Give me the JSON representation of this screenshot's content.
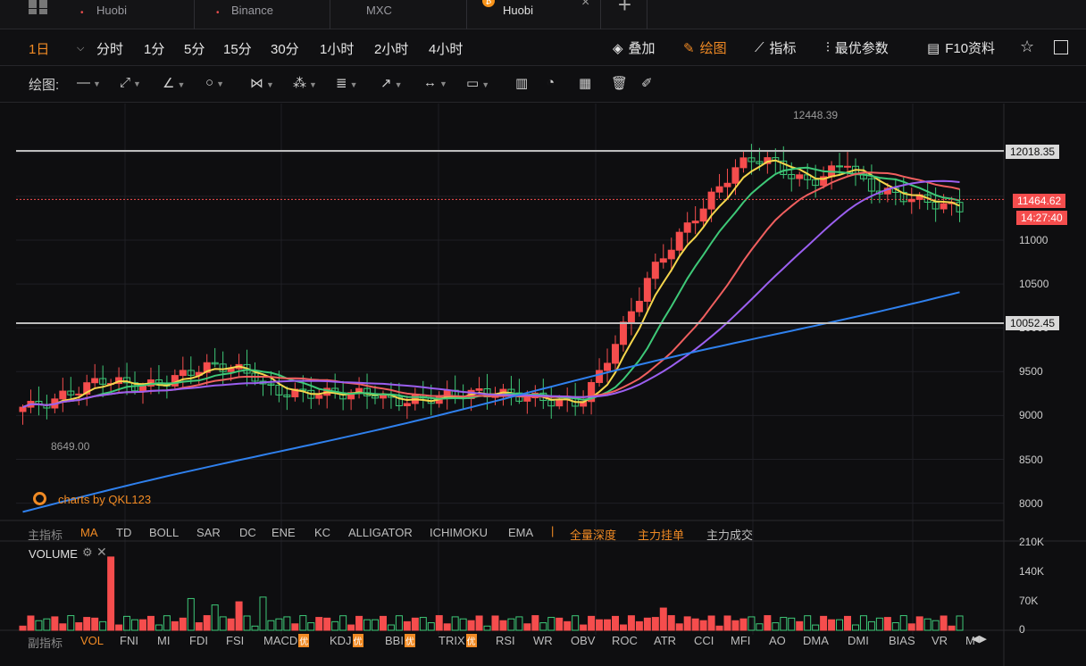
{
  "tabs": [
    {
      "label": "Huobi",
      "has_dot": true
    },
    {
      "label": "Binance",
      "has_dot": true
    },
    {
      "label": "MXC",
      "has_dot": false
    },
    {
      "label": "Huobi",
      "has_dot": false
    }
  ],
  "periods": [
    "1日",
    "分时",
    "1分",
    "5分",
    "15分",
    "30分",
    "1小时",
    "2小时",
    "4小时"
  ],
  "active_period": "1日",
  "right_tools": [
    {
      "label": "叠加",
      "icon": "layers-icon"
    },
    {
      "label": "绘图",
      "icon": "pencil-icon",
      "active": true
    },
    {
      "label": "指标",
      "icon": "indicator-icon"
    },
    {
      "label": "最优参数",
      "icon": "params-icon"
    },
    {
      "label": "F10资料",
      "icon": "doc-icon"
    }
  ],
  "draw_label": "绘图:",
  "price_axis": {
    "ticks": [
      "11000",
      "10500",
      "10000",
      "9500",
      "9000",
      "8500",
      "8000"
    ],
    "h_lines": [
      {
        "label": "12018.35",
        "value": 12018.35
      },
      {
        "label": "10052.45",
        "value": 10052.45
      }
    ],
    "current_price": "11464.62",
    "countdown": "14:27:40"
  },
  "annotations": {
    "high": "12448.39",
    "low": "8649.00",
    "watermark": "charts by QKL123"
  },
  "main_indicators": {
    "label": "主指标",
    "items": [
      "MA",
      "TD",
      "BOLL",
      "SAR",
      "DC",
      "ENE",
      "KC",
      "ALLIGATOR",
      "ICHIMOKU",
      "EMA"
    ],
    "active": "MA",
    "extras": [
      "全量深度",
      "主力挂单",
      "主力成交"
    ]
  },
  "volume": {
    "title": "VOLUME",
    "ticks": [
      "210K",
      "140K",
      "70K",
      "0"
    ]
  },
  "sub_indicators": {
    "label": "副指标",
    "items": [
      "VOL",
      "FNI",
      "MI",
      "FDI",
      "FSI",
      "MACD",
      "KDJ",
      "BBI",
      "TRIX",
      "RSI",
      "WR",
      "OBV",
      "ROC",
      "ATR",
      "CCI",
      "MFI",
      "AO",
      "DMA",
      "DMI",
      "BIAS",
      "VR",
      "M"
    ],
    "active": "VOL",
    "premium": [
      "MACD",
      "KDJ",
      "BBI",
      "TRIX"
    ],
    "premium_tag": "优"
  },
  "colors": {
    "up": "#f54d4d",
    "down": "#3ec978",
    "accent": "#f08a24",
    "ma5": "#f6d64c",
    "ma10": "#3ec978",
    "ma20": "#f05f5f",
    "ma30": "#9b5ff0",
    "ma60": "#2f80ed"
  }
}
